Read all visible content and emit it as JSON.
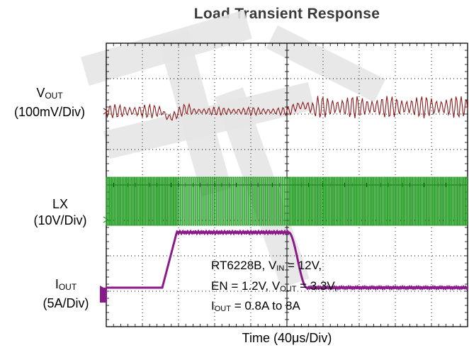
{
  "chart_data": {
    "type": "line",
    "title": "Load Transient Response",
    "xlabel": "Time",
    "xlabel_unit": "(40μs/Div)",
    "grid": true,
    "divisions": {
      "x": 10,
      "y": 8
    },
    "channels": [
      {
        "label_main": "V",
        "label_sub": "OUT",
        "scale": "(100mV/Div)",
        "color": "#8b1a1a"
      },
      {
        "label_main": "LX",
        "label_sub": "",
        "scale": "(10V/Div)",
        "color": "#1f9a1f"
      },
      {
        "label_main": "I",
        "label_sub": "OUT",
        "scale": "(5A/Div)",
        "color": "#8a1a8a"
      }
    ],
    "annotation": {
      "line1": {
        "a": "RT6228B, V",
        "sub": "IN",
        "b": " = 12V,"
      },
      "line2": {
        "a": "EN = 1.2V, V",
        "sub": "OUT",
        "b": " = 3.3V,"
      },
      "line3": {
        "a": "I",
        "sub": "OUT",
        "b": " = 0.8A to 8A"
      }
    },
    "iout_step": {
      "low_A": 0.8,
      "high_A": 8,
      "rise_start_div": 1.55,
      "rise_end_div": 1.95,
      "fall_start_div": 5.05,
      "fall_end_div": 5.55
    },
    "colors": {
      "vout": "#8b1a1a",
      "lx": "#1f9a1f",
      "iout": "#8a1a8a",
      "watermark": "#e6e6e6",
      "grid": "#000000"
    }
  }
}
